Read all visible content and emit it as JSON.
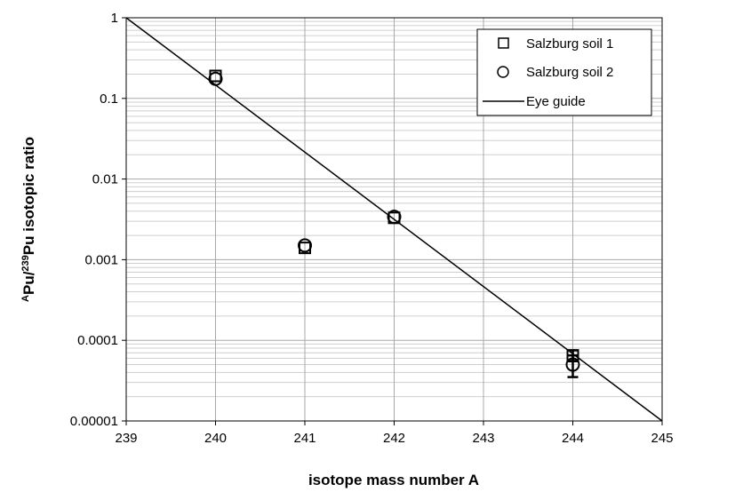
{
  "chart_data": {
    "type": "scatter",
    "xlabel": "isotope mass number A",
    "ylabel": {
      "prefix_sup": "A",
      "base1": "Pu/",
      "mid_sup": "239",
      "base2": "Pu isotopic ratio"
    },
    "xlim": [
      239,
      245
    ],
    "ylim": [
      1e-05,
      1
    ],
    "y_scale": "log",
    "x_ticks": [
      "239",
      "240",
      "241",
      "242",
      "243",
      "244",
      "245"
    ],
    "y_ticks": [
      {
        "value": 1,
        "label": "1"
      },
      {
        "value": 0.1,
        "label": "0.1"
      },
      {
        "value": 0.01,
        "label": "0.01"
      },
      {
        "value": 0.001,
        "label": "0.001"
      },
      {
        "value": 0.0001,
        "label": "0.0001"
      },
      {
        "value": 1e-05,
        "label": "0.00001"
      }
    ],
    "grid": true,
    "legend_position": "top-right",
    "series": [
      {
        "name": "Salzburg soil 1",
        "marker": "square",
        "points": [
          {
            "x": 240,
            "y": 0.19
          },
          {
            "x": 241,
            "y": 0.0014
          },
          {
            "x": 242,
            "y": 0.0033
          },
          {
            "x": 244,
            "y": 6.5e-05,
            "err_low": 5.5e-05,
            "err_high": 7.5e-05
          }
        ]
      },
      {
        "name": "Salzburg soil 2",
        "marker": "circle",
        "points": [
          {
            "x": 240,
            "y": 0.175
          },
          {
            "x": 241,
            "y": 0.0015
          },
          {
            "x": 242,
            "y": 0.0034
          },
          {
            "x": 244,
            "y": 5e-05,
            "err_low": 3.5e-05,
            "err_high": 6.5e-05
          }
        ]
      },
      {
        "name": "Eye guide",
        "marker": "line",
        "points": [
          {
            "x": 239,
            "y": 1
          },
          {
            "x": 245,
            "y": 1e-05
          }
        ]
      }
    ]
  }
}
